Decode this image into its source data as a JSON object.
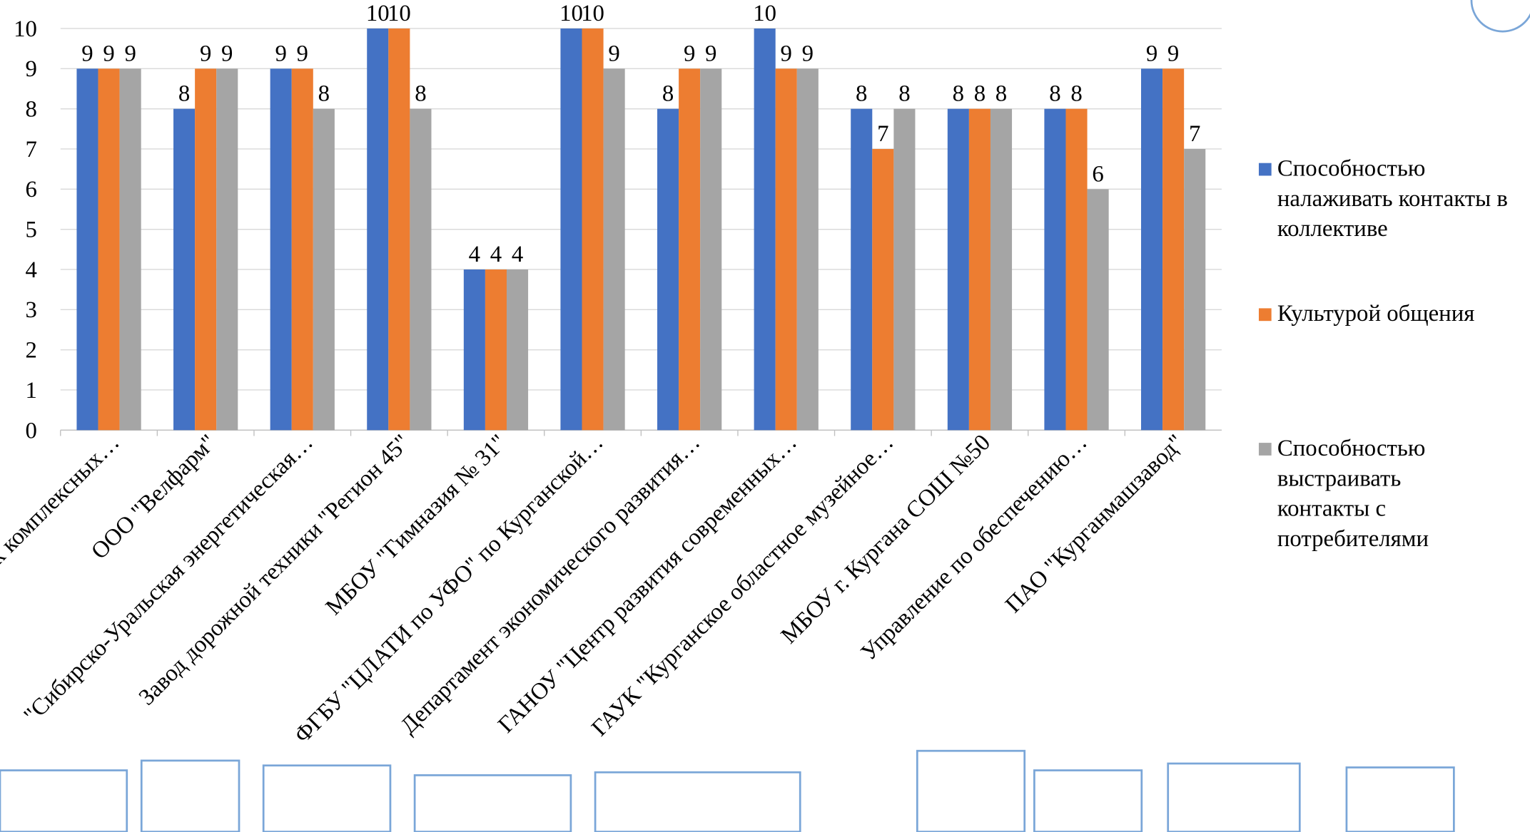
{
  "chart_data": {
    "type": "bar",
    "categories": [
      "к комплексных…",
      "ООО \"Велфарм\"",
      "\"Сибирско-Уральская энергетическая…",
      "Завод дорожной техники \"Регион 45\"",
      "МБОУ \"Гимназия № 31\"",
      "ФГБУ \"ЦЛАТИ по УФО\" по Курганской…",
      "Департамент экономического развития…",
      "ГАНОУ  \"Центр развития современных…",
      "ГАУК \"Курганское областное музейное…",
      "МБОУ г. Кургана СОШ №50",
      "Управление по обеспечению…",
      "ПАО \"Курганмашзавод\""
    ],
    "series": [
      {
        "name": "Способностью налаживать контакты в коллективе",
        "color": "#4472c4",
        "values": [
          9,
          8,
          9,
          10,
          4,
          10,
          8,
          10,
          8,
          8,
          8,
          9
        ]
      },
      {
        "name": "Культурой общения",
        "color": "#ed7d31",
        "values": [
          9,
          9,
          9,
          10,
          4,
          10,
          9,
          9,
          7,
          8,
          8,
          9
        ]
      },
      {
        "name": "Способностью выстраивать контакты с потребителями",
        "color": "#a5a5a5",
        "values": [
          9,
          9,
          8,
          8,
          4,
          9,
          9,
          9,
          8,
          8,
          6,
          7
        ]
      }
    ],
    "ylim": [
      0,
      10
    ],
    "yticks": [
      0,
      1,
      2,
      3,
      4,
      5,
      6,
      7,
      8,
      9,
      10
    ],
    "grid": true,
    "legend": "right"
  }
}
